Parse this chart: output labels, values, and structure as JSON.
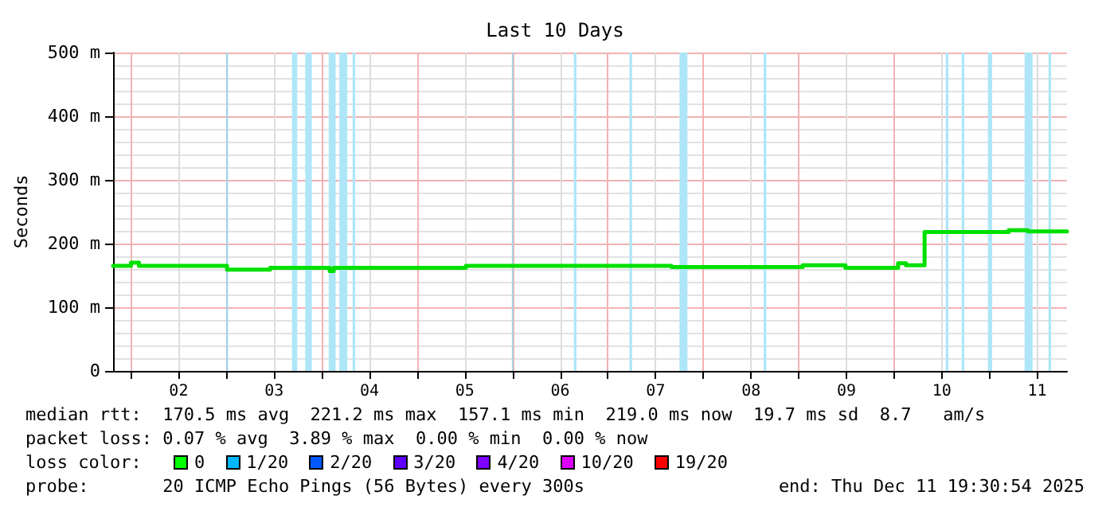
{
  "chart_data": {
    "type": "step",
    "title": "Last 10 Days",
    "ylabel": "Seconds",
    "x": [
      "2025-12-01T19:30",
      "2025-12-02T00:00",
      "2025-12-02T02:00",
      "2025-12-03T00:10",
      "2025-12-03T11:00",
      "2025-12-04T02:00",
      "2025-12-04T03:00",
      "2025-12-05T12:15",
      "2025-12-07T16:00",
      "2025-12-09T01:00",
      "2025-12-09T11:45",
      "2025-12-10T01:00",
      "2025-12-10T03:00",
      "2025-12-10T07:40",
      "2025-12-11T04:50",
      "2025-12-11T09:40",
      "2025-12-11T19:30"
    ],
    "series": [
      {
        "color": "#00e000",
        "values": [
          165,
          170,
          165,
          159,
          162,
          157,
          162,
          165,
          163,
          166,
          162,
          169,
          166,
          218,
          221,
          219,
          219
        ]
      }
    ],
    "xlim": [
      "2025-12-01T19:30",
      "2025-12-11T19:30"
    ],
    "xticks": [
      {
        "value": "2025-12-02T00:00",
        "label": null
      },
      {
        "value": "2025-12-02T12:00",
        "label": "02"
      },
      {
        "value": "2025-12-03T00:00",
        "label": null
      },
      {
        "value": "2025-12-03T12:00",
        "label": "03"
      },
      {
        "value": "2025-12-04T00:00",
        "label": null
      },
      {
        "value": "2025-12-04T12:00",
        "label": "04"
      },
      {
        "value": "2025-12-05T00:00",
        "label": null
      },
      {
        "value": "2025-12-05T12:00",
        "label": "05"
      },
      {
        "value": "2025-12-06T00:00",
        "label": null
      },
      {
        "value": "2025-12-06T12:00",
        "label": "06"
      },
      {
        "value": "2025-12-07T00:00",
        "label": null
      },
      {
        "value": "2025-12-07T12:00",
        "label": "07"
      },
      {
        "value": "2025-12-08T00:00",
        "label": null
      },
      {
        "value": "2025-12-08T12:00",
        "label": "08"
      },
      {
        "value": "2025-12-09T00:00",
        "label": null
      },
      {
        "value": "2025-12-09T12:00",
        "label": "09"
      },
      {
        "value": "2025-12-10T00:00",
        "label": null
      },
      {
        "value": "2025-12-10T12:00",
        "label": "10"
      },
      {
        "value": "2025-12-11T00:00",
        "label": null
      },
      {
        "value": "2025-12-11T12:00",
        "label": "11"
      }
    ],
    "ylim": [
      0,
      500
    ],
    "yticks": [
      0,
      {
        "value": 100,
        "label": "100 m"
      },
      {
        "value": 200,
        "label": "200 m"
      },
      {
        "value": 300,
        "label": "300 m"
      },
      {
        "value": 400,
        "label": "400 m"
      },
      {
        "value": 500,
        "label": "500 m"
      }
    ],
    "grid": true,
    "marker": "none",
    "line_style": "solid",
    "bands": [
      {
        "axis": "x",
        "from": "2025-12-03T00:00",
        "to": "2025-12-03T00:25",
        "color": "#9ad8f0"
      },
      {
        "axis": "x",
        "from": "2025-12-03T16:30",
        "to": "2025-12-03T17:50",
        "color": "#aee6f8"
      },
      {
        "axis": "x",
        "from": "2025-12-03T19:50",
        "to": "2025-12-03T21:30",
        "color": "#aee6f8"
      },
      {
        "axis": "x",
        "from": "2025-12-04T01:45",
        "to": "2025-12-04T03:30",
        "color": "#aee6f8"
      },
      {
        "axis": "x",
        "from": "2025-12-04T04:25",
        "to": "2025-12-04T06:25",
        "color": "#aee6f8"
      },
      {
        "axis": "x",
        "from": "2025-12-04T07:45",
        "to": "2025-12-04T08:25",
        "color": "#aee6f8"
      },
      {
        "axis": "x",
        "from": "2025-12-05T23:50",
        "to": "2025-12-06T00:10",
        "color": "#9ad8f0"
      },
      {
        "axis": "x",
        "from": "2025-12-06T15:25",
        "to": "2025-12-06T16:05",
        "color": "#aee6f8"
      },
      {
        "axis": "x",
        "from": "2025-12-07T05:25",
        "to": "2025-12-07T06:05",
        "color": "#aee6f8"
      },
      {
        "axis": "x",
        "from": "2025-12-07T18:00",
        "to": "2025-12-07T20:00",
        "color": "#aee6f8"
      },
      {
        "axis": "x",
        "from": "2025-12-08T15:10",
        "to": "2025-12-08T15:50",
        "color": "#aee6f8"
      },
      {
        "axis": "x",
        "from": "2025-12-10T13:00",
        "to": "2025-12-10T13:40",
        "color": "#aee6f8"
      },
      {
        "axis": "x",
        "from": "2025-12-10T17:00",
        "to": "2025-12-10T17:40",
        "color": "#aee6f8"
      },
      {
        "axis": "x",
        "from": "2025-12-10T23:35",
        "to": "2025-12-11T00:40",
        "color": "#aee6f8"
      },
      {
        "axis": "x",
        "from": "2025-12-11T08:50",
        "to": "2025-12-11T10:50",
        "color": "#aee6f8"
      },
      {
        "axis": "x",
        "from": "2025-12-11T14:50",
        "to": "2025-12-11T15:30",
        "color": "#aee6f8"
      }
    ],
    "annotations": [
      "median rtt:  170.5 ms avg  221.2 ms max  157.1 ms min  219.0 ms now  19.7 ms sd  8.7   am/s",
      "packet loss: 0.07 % avg  3.89 % max  0.00 % min  0.00 % now",
      "loss color:",
      "0",
      "1/20",
      "2/20",
      "3/20",
      "4/20",
      "10/20",
      "19/20",
      "probe:       20 ICMP Echo Pings (56 Bytes) every 300s",
      "end: Thu Dec 11 19:30:54 2025"
    ]
  }
}
